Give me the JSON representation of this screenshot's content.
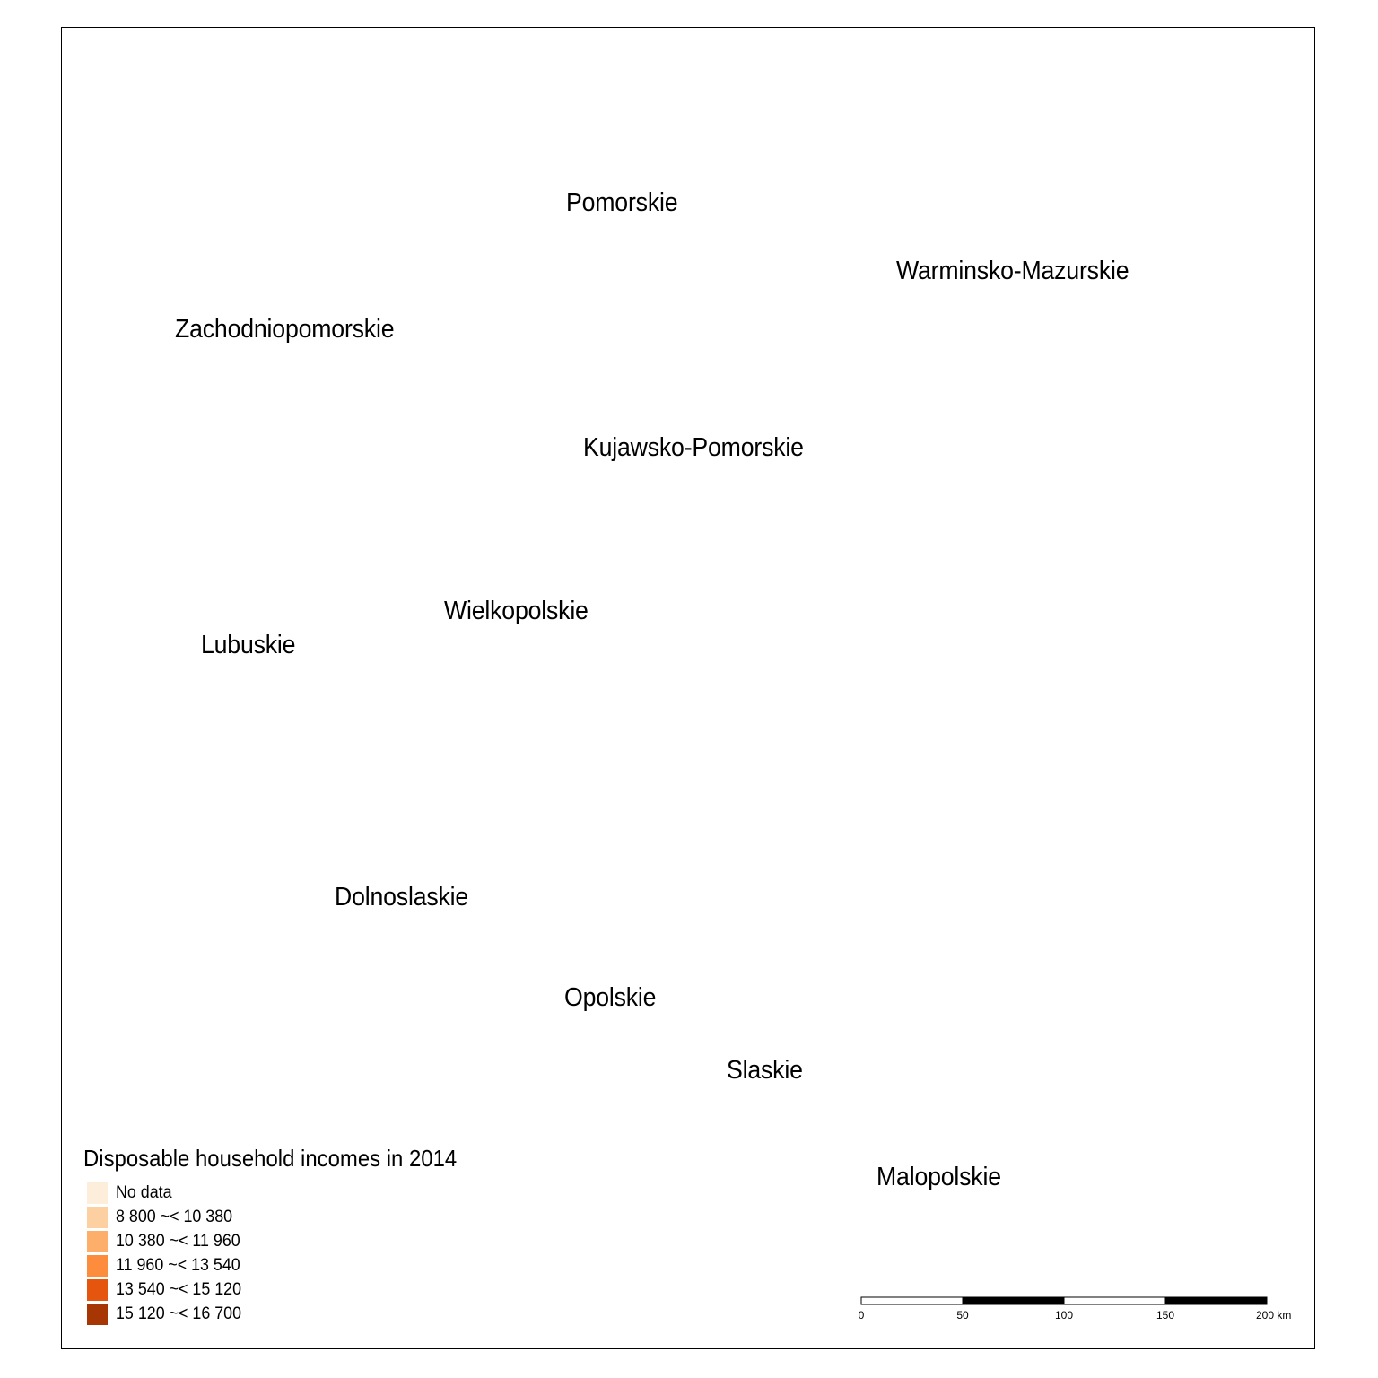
{
  "map": {
    "regions": [
      {
        "name": "Pomorskie"
      },
      {
        "name": "Warminsko-Mazurskie"
      },
      {
        "name": "Zachodniopomorskie"
      },
      {
        "name": "Kujawsko-Pomorskie"
      },
      {
        "name": "Wielkopolskie"
      },
      {
        "name": "Lubuskie"
      },
      {
        "name": "Dolnoslaskie"
      },
      {
        "name": "Opolskie"
      },
      {
        "name": "Slaskie"
      },
      {
        "name": "Malopolskie"
      }
    ]
  },
  "legend": {
    "title": "Disposable household incomes in 2014",
    "items": [
      {
        "label": "No data",
        "color": "#fdeedc"
      },
      {
        "label": "8 800 ~< 10 380",
        "color": "#fdd0a2"
      },
      {
        "label": "10 380 ~< 11 960",
        "color": "#fdae6b"
      },
      {
        "label": "11 960 ~< 13 540",
        "color": "#fd8d3c"
      },
      {
        "label": "13 540 ~< 15 120",
        "color": "#e6550d"
      },
      {
        "label": "15 120 ~< 16 700",
        "color": "#a63603"
      }
    ]
  },
  "scale_bar": {
    "ticks": [
      "0",
      "50",
      "100",
      "150",
      "200 km"
    ]
  }
}
